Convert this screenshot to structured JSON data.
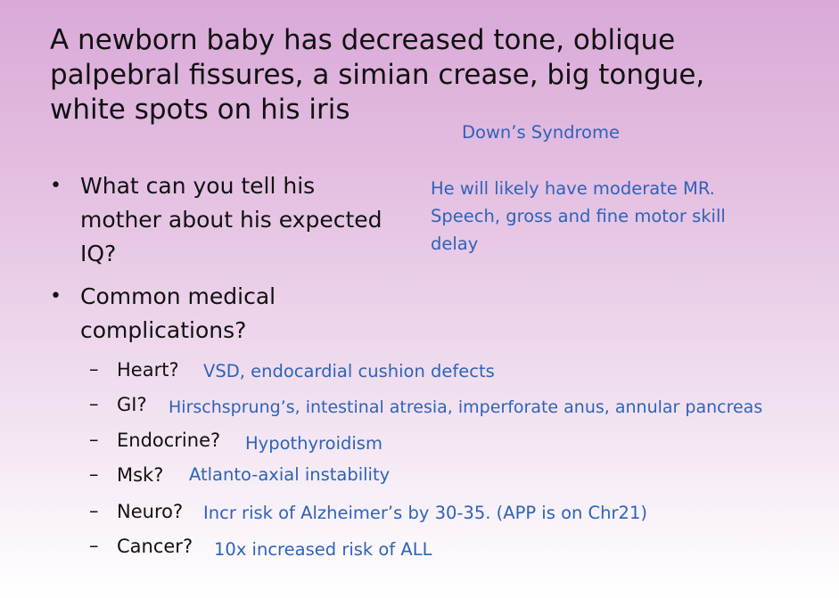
{
  "title": {
    "line1": "A newborn baby has decreased tone, oblique",
    "line2": "palpebral fissures, a simian crease, big tongue,",
    "line3": "white spots on his iris"
  },
  "diagnosis": "Down’s Syndrome",
  "bullets": [
    {
      "marker": "•",
      "lines": [
        "What can you tell his",
        "mother about his expected",
        "IQ?"
      ],
      "answer_lines": [
        "He will likely have moderate MR.",
        "Speech, gross and fine motor skill",
        "delay"
      ]
    },
    {
      "marker": "•",
      "lines": [
        "Common medical",
        "complications?"
      ]
    }
  ],
  "complications": [
    {
      "dash": "–",
      "label": "Heart?",
      "answer": "VSD, endocardial cushion defects"
    },
    {
      "dash": "–",
      "label": "GI?",
      "answer": "Hirschsprung’s, intestinal atresia, imperforate anus, annular pancreas"
    },
    {
      "dash": "–",
      "label": "Endocrine?",
      "answer": "Hypothyroidism"
    },
    {
      "dash": "–",
      "label": "Msk?",
      "answer": "Atlanto-axial instability"
    },
    {
      "dash": "–",
      "label": "Neuro?",
      "answer": "Incr risk of Alzheimer’s by 30-35. (APP is on Chr21)"
    },
    {
      "dash": "–",
      "label": "Cancer?",
      "answer": "10x increased risk of ALL"
    }
  ]
}
